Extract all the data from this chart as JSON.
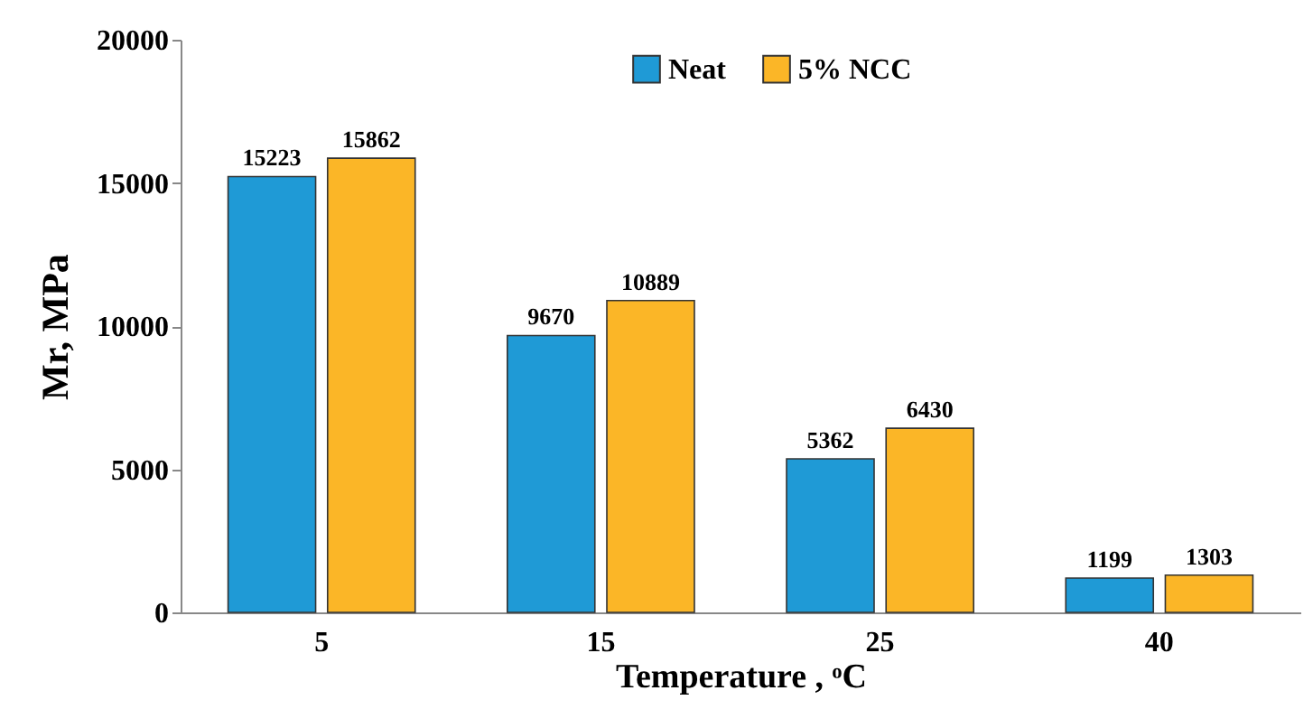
{
  "chart_data": {
    "type": "bar",
    "xlabel": "Temperature , ᵒC",
    "ylabel": "Mr, MPa",
    "categories": [
      "5",
      "15",
      "25",
      "40"
    ],
    "series": [
      {
        "name": "Neat",
        "color": "#1f9ad6",
        "values": [
          15223,
          9670,
          5362,
          1199
        ]
      },
      {
        "name": "5% NCC",
        "color": "#fbb627",
        "values": [
          15862,
          10889,
          6430,
          1303
        ]
      }
    ],
    "ylim": [
      0,
      20000
    ],
    "yticks": [
      0,
      5000,
      10000,
      15000,
      20000
    ],
    "grid": false,
    "legend": "top",
    "data_labels": true
  }
}
